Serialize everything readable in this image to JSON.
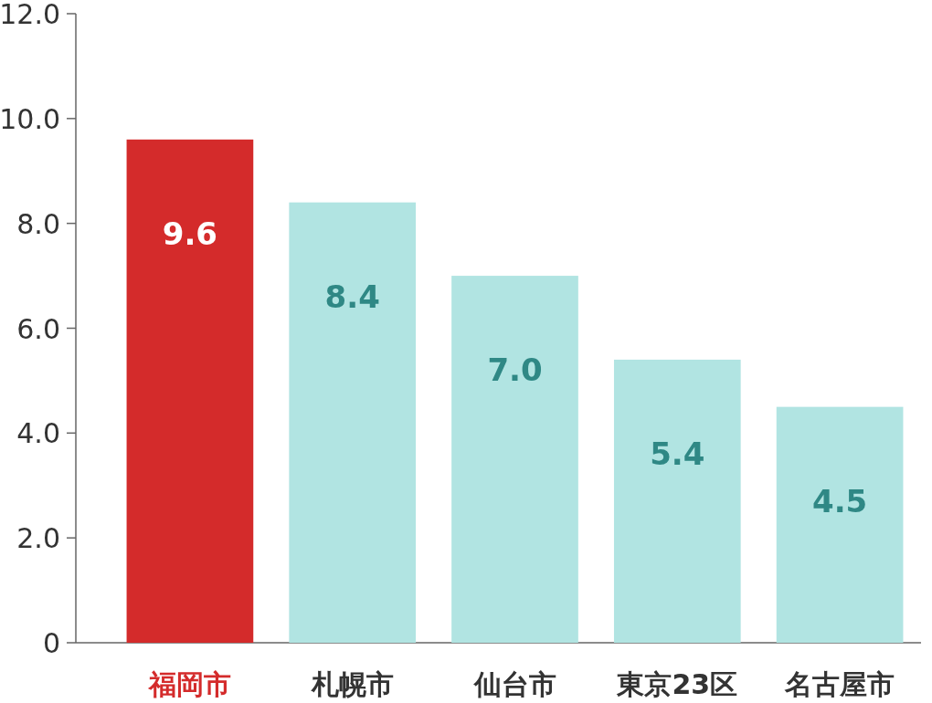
{
  "chart_data": {
    "type": "bar",
    "categories": [
      "福岡市",
      "札幌市",
      "仙台市",
      "東京23区",
      "名古屋市"
    ],
    "values": [
      9.6,
      8.4,
      7.0,
      5.4,
      4.5
    ],
    "value_labels": [
      "9.6",
      "8.4",
      "7.0",
      "5.4",
      "4.5"
    ],
    "colors": [
      "#d42b2b",
      "#b1e4e2",
      "#b1e4e2",
      "#b1e4e2",
      "#b1e4e2"
    ],
    "ylim": [
      0,
      12
    ],
    "yticks": [
      {
        "value": 0,
        "label": "0"
      },
      {
        "value": 2,
        "label": "2.0"
      },
      {
        "value": 4,
        "label": "4.0"
      },
      {
        "value": 6,
        "label": "6.0"
      },
      {
        "value": 8,
        "label": "8.0"
      },
      {
        "value": 10,
        "label": "10.0"
      },
      {
        "value": 12,
        "label": "12.0"
      }
    ],
    "grid": false
  }
}
